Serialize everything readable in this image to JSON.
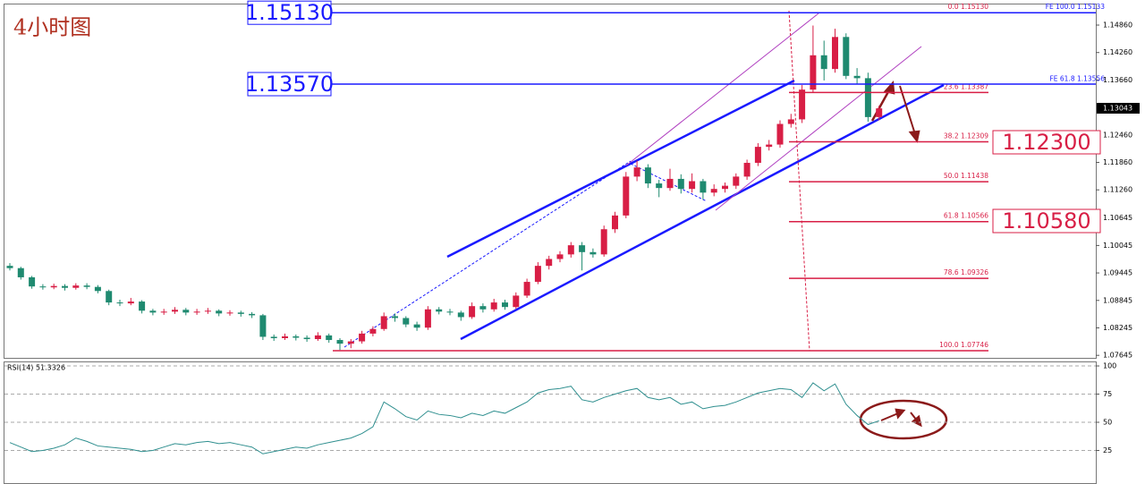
{
  "chart_data": [
    {
      "type": "candlestick",
      "title": "4小时图",
      "up_color": "#d81e45",
      "down_color": "#1f8a70",
      "ylim": [
        1.0759,
        1.1531
      ],
      "yticks": [
        {
          "value": 1.1486,
          "label": "1.14860"
        },
        {
          "value": 1.1426,
          "label": "1.14260"
        },
        {
          "value": 1.1366,
          "label": "1.13660"
        },
        {
          "value": 1.1246,
          "label": "1.12460"
        },
        {
          "value": 1.1186,
          "label": "1.11860"
        },
        {
          "value": 1.1126,
          "label": "1.11260"
        },
        1.10645,
        1.10045,
        1.09445,
        1.08845,
        1.08245,
        1.07645
      ],
      "last_price": {
        "value": 1.13043,
        "label": "1.13043"
      },
      "ohlc": [
        [
          1.096,
          1.0966,
          1.095,
          1.0955
        ],
        [
          1.0955,
          1.0958,
          1.093,
          1.0935
        ],
        [
          1.0935,
          1.0938,
          1.091,
          1.0915
        ],
        [
          1.0915,
          1.092,
          1.0908,
          1.0913
        ],
        [
          1.0913,
          1.0921,
          1.0909,
          1.0916
        ],
        [
          1.0916,
          1.092,
          1.0906,
          1.0912
        ],
        [
          1.0912,
          1.0922,
          1.0908,
          1.0917
        ],
        [
          1.0917,
          1.0922,
          1.0909,
          1.0914
        ],
        [
          1.0914,
          1.0918,
          1.09,
          1.0905
        ],
        [
          1.0905,
          1.0908,
          1.0874,
          1.088
        ],
        [
          1.088,
          1.0886,
          1.0872,
          1.0878
        ],
        [
          1.0878,
          1.089,
          1.0874,
          1.0882
        ],
        [
          1.0882,
          1.0885,
          1.0856,
          1.0862
        ],
        [
          1.0862,
          1.0866,
          1.0852,
          1.0858
        ],
        [
          1.0858,
          1.0866,
          1.0853,
          1.086
        ],
        [
          1.086,
          1.087,
          1.0855,
          1.0864
        ],
        [
          1.0864,
          1.0868,
          1.0852,
          1.0858
        ],
        [
          1.0858,
          1.0866,
          1.0853,
          1.086
        ],
        [
          1.086,
          1.0868,
          1.0855,
          1.0862
        ],
        [
          1.0862,
          1.0865,
          1.085,
          1.0856
        ],
        [
          1.0856,
          1.0863,
          1.0851,
          1.0858
        ],
        [
          1.0858,
          1.0862,
          1.0849,
          1.0855
        ],
        [
          1.0855,
          1.0859,
          1.0846,
          1.0852
        ],
        [
          1.0852,
          1.0855,
          1.0798,
          1.0805
        ],
        [
          1.0805,
          1.081,
          1.0796,
          1.0802
        ],
        [
          1.0802,
          1.0812,
          1.0798,
          1.0806
        ],
        [
          1.0806,
          1.081,
          1.0797,
          1.0803
        ],
        [
          1.0803,
          1.0808,
          1.0794,
          1.08
        ],
        [
          1.08,
          1.0815,
          1.0796,
          1.0808
        ],
        [
          1.0808,
          1.0812,
          1.0792,
          1.0798
        ],
        [
          1.0798,
          1.0802,
          1.0776,
          1.079
        ],
        [
          1.079,
          1.08,
          1.078,
          1.0795
        ],
        [
          1.0795,
          1.0818,
          1.079,
          1.0812
        ],
        [
          1.0812,
          1.0828,
          1.0806,
          1.0822
        ],
        [
          1.0822,
          1.0858,
          1.0818,
          1.085
        ],
        [
          1.085,
          1.0856,
          1.0838,
          1.0846
        ],
        [
          1.0846,
          1.085,
          1.0826,
          1.0832
        ],
        [
          1.0832,
          1.0838,
          1.0818,
          1.0825
        ],
        [
          1.0825,
          1.0872,
          1.082,
          1.0865
        ],
        [
          1.0865,
          1.087,
          1.0854,
          1.086
        ],
        [
          1.086,
          1.0866,
          1.0852,
          1.0858
        ],
        [
          1.0858,
          1.0862,
          1.084,
          1.0848
        ],
        [
          1.0848,
          1.088,
          1.0844,
          1.0872
        ],
        [
          1.0872,
          1.0878,
          1.0858,
          1.0865
        ],
        [
          1.0865,
          1.0888,
          1.086,
          1.088
        ],
        [
          1.088,
          1.0886,
          1.0864,
          1.087
        ],
        [
          1.087,
          1.0902,
          1.0866,
          1.0895
        ],
        [
          1.0895,
          1.0932,
          1.089,
          1.0925
        ],
        [
          1.0925,
          1.0968,
          1.092,
          1.096
        ],
        [
          1.096,
          1.0982,
          1.0952,
          1.0975
        ],
        [
          1.0975,
          1.0992,
          1.0968,
          1.0985
        ],
        [
          1.0985,
          1.1012,
          1.0978,
          1.1005
        ],
        [
          1.1005,
          1.1012,
          1.095,
          1.099
        ],
        [
          1.099,
          1.0998,
          1.0978,
          1.0985
        ],
        [
          1.0985,
          1.1048,
          1.098,
          1.104
        ],
        [
          1.104,
          1.1078,
          1.1032,
          1.107
        ],
        [
          1.107,
          1.1165,
          1.1064,
          1.1155
        ],
        [
          1.1155,
          1.119,
          1.1145,
          1.1175
        ],
        [
          1.1175,
          1.1182,
          1.113,
          1.114
        ],
        [
          1.114,
          1.1148,
          1.111,
          1.113
        ],
        [
          1.113,
          1.1172,
          1.1124,
          1.115
        ],
        [
          1.115,
          1.116,
          1.1118,
          1.1128
        ],
        [
          1.1128,
          1.1162,
          1.112,
          1.1145
        ],
        [
          1.1145,
          1.115,
          1.1105,
          1.112
        ],
        [
          1.112,
          1.1138,
          1.1112,
          1.1128
        ],
        [
          1.1128,
          1.1142,
          1.112,
          1.1135
        ],
        [
          1.1135,
          1.1162,
          1.1128,
          1.1155
        ],
        [
          1.1155,
          1.1192,
          1.1148,
          1.1185
        ],
        [
          1.1185,
          1.1228,
          1.1178,
          1.122
        ],
        [
          1.122,
          1.1235,
          1.1212,
          1.1225
        ],
        [
          1.1225,
          1.1278,
          1.1218,
          1.127
        ],
        [
          1.127,
          1.1292,
          1.1262,
          1.128
        ],
        [
          1.128,
          1.1355,
          1.1272,
          1.1345
        ],
        [
          1.1345,
          1.1485,
          1.1338,
          1.142
        ],
        [
          1.142,
          1.1452,
          1.1365,
          1.139
        ],
        [
          1.139,
          1.1478,
          1.1382,
          1.146
        ],
        [
          1.146,
          1.1468,
          1.1368,
          1.1375
        ],
        [
          1.1375,
          1.1392,
          1.1358,
          1.137
        ],
        [
          1.137,
          1.1382,
          1.1275,
          1.1285
        ],
        [
          1.1285,
          1.131,
          1.1278,
          1.1304
        ]
      ],
      "fib_levels": [
        {
          "value": 1.1513,
          "label": "0.0  1.15130"
        },
        {
          "value": 1.13387,
          "label": "23.6  1.13387"
        },
        {
          "value": 1.12309,
          "label": "38.2  1.12309"
        },
        {
          "value": 1.11438,
          "label": "50.0  1.11438"
        },
        {
          "value": 1.10566,
          "label": "61.8  1.10566"
        },
        {
          "value": 1.09326,
          "label": "78.6  1.09326"
        },
        {
          "value": 1.07746,
          "label": "100.0  1.07746"
        }
      ],
      "fe_levels": [
        {
          "value": 1.15133,
          "label": "FE 100.0  1.15133"
        },
        {
          "value": 1.13556,
          "label": "FE 61.8  1.13556"
        }
      ],
      "price_labels": [
        {
          "value": 1.1513,
          "label": "1.15130",
          "side": "left",
          "color": "#1a1aff"
        },
        {
          "value": 1.1357,
          "label": "1.13570",
          "side": "left",
          "color": "#1a1aff"
        },
        {
          "value": 1.123,
          "label": "1.12300",
          "side": "right",
          "color": "#d81e45"
        },
        {
          "value": 1.1058,
          "label": "1.10580",
          "side": "right",
          "color": "#d81e45"
        }
      ]
    },
    {
      "type": "line",
      "title": "RSI(14) 51.3326",
      "color": "#2f8f8f",
      "ylim": [
        -4,
        104
      ],
      "yticks": [
        100,
        75,
        50,
        25
      ],
      "grid": true,
      "values": [
        32,
        28,
        24,
        25,
        27,
        30,
        36,
        33,
        29,
        28,
        27,
        26,
        24,
        25,
        28,
        31,
        30,
        32,
        33,
        31,
        32,
        30,
        28,
        22,
        24,
        26,
        28,
        27,
        30,
        32,
        34,
        36,
        40,
        46,
        68,
        62,
        55,
        52,
        60,
        57,
        56,
        54,
        58,
        56,
        60,
        58,
        63,
        68,
        76,
        79,
        80,
        82,
        70,
        68,
        72,
        75,
        78,
        80,
        72,
        70,
        72,
        66,
        68,
        62,
        64,
        65,
        68,
        72,
        76,
        78,
        80,
        79,
        72,
        85,
        78,
        84,
        66,
        56,
        48,
        51.3326
      ]
    }
  ]
}
